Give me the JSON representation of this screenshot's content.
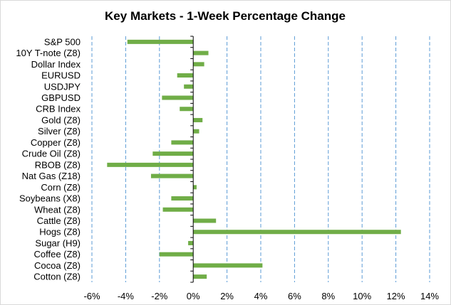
{
  "chart_data": {
    "type": "bar",
    "orientation": "horizontal",
    "title": "Key Markets - 1-Week Percentage Change",
    "xlabel": "",
    "ylabel": "",
    "categories": [
      "S&P 500",
      "10Y T-note (Z8)",
      "Dollar Index",
      "EURUSD",
      "USDJPY",
      "GBPUSD",
      "CRB Index",
      "Gold (Z8)",
      "Silver (Z8)",
      "Copper (Z8)",
      "Crude Oil (Z8)",
      "RBOB (Z8)",
      "Nat Gas (Z18)",
      "Corn (Z8)",
      "Soybeans (X8)",
      "Wheat (Z8)",
      "Cattle (Z8)",
      "Hogs (Z8)",
      "Sugar (H9)",
      "Coffee (Z8)",
      "Cocoa (Z8)",
      "Cotton (Z8)"
    ],
    "values": [
      -3.9,
      0.9,
      0.65,
      -0.95,
      -0.55,
      -1.85,
      -0.8,
      0.55,
      0.35,
      -1.3,
      -2.4,
      -5.1,
      -2.5,
      0.2,
      -1.3,
      -1.8,
      1.35,
      12.3,
      -0.3,
      -2.0,
      4.1,
      0.8
    ],
    "xlim": [
      -6,
      14
    ],
    "ticks": [
      -6,
      -4,
      -2,
      0,
      2,
      4,
      6,
      8,
      10,
      12,
      14
    ],
    "tick_labels": [
      "-6%",
      "-4%",
      "-2%",
      "0%",
      "2%",
      "4%",
      "6%",
      "8%",
      "10%",
      "12%",
      "14%"
    ],
    "grid": "vertical-dashed",
    "legend": "none",
    "colors": {
      "bar": "#70ad47",
      "grid": "#5b9bd5",
      "axis": "#000000",
      "frame": "#d9d9d9"
    }
  }
}
